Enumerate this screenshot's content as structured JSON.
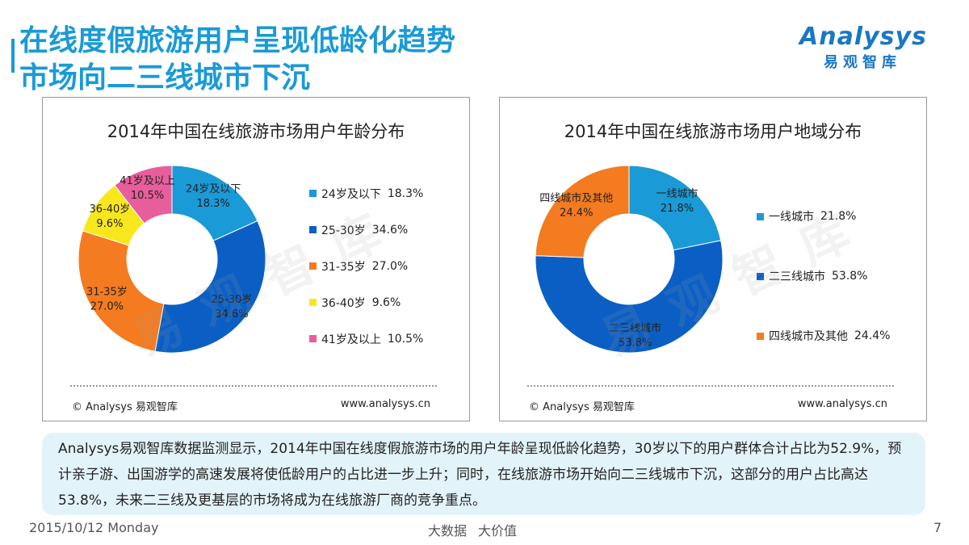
{
  "page": {
    "title_line1": "在线度假旅游用户呈现低龄化趋势",
    "title_line2": "市场向二三线城市下沉",
    "logo_en": "Analysys",
    "logo_cn": "易观智库",
    "watermark": "易观智库",
    "summary": "Analysys易观智库数据监测显示，2014年中国在线度假旅游市场的用户年龄呈现低龄化趋势，30岁以下的用户群体合计占比为52.9%，预计亲子游、出国游学的高速发展将使低龄用户的占比进一步上升；同时，在线旅游市场开始向二三线城市下沉，这部分的用户占比高达53.8%，未来二三线及更基层的市场将成为在线旅游厂商的竞争重点。",
    "date": "2015/10/12 Monday",
    "footer_center_1": "大数据",
    "footer_center_2": "大价值",
    "page_number": "7"
  },
  "chart_data": [
    {
      "type": "pie",
      "title": "2014年中国在线旅游市场用户年龄分布",
      "copyright": "© Analysys 易观智库",
      "url": "www.analysys.cn",
      "slices": [
        {
          "name": "24岁及以下",
          "value": 18.3,
          "label": "18.3%",
          "color": "#1a9ad6"
        },
        {
          "name": "25-30岁",
          "value": 34.6,
          "label": "34.6%",
          "color": "#0b5fc4"
        },
        {
          "name": "31-35岁",
          "value": 27.0,
          "label": "27.0%",
          "color": "#f47b20"
        },
        {
          "name": "36-40岁",
          "value": 9.6,
          "label": "9.6%",
          "color": "#f8e71c"
        },
        {
          "name": "41岁及以上",
          "value": 10.5,
          "label": "10.5%",
          "color": "#e85d9c"
        }
      ]
    },
    {
      "type": "pie",
      "title": "2014年中国在线旅游市场用户地域分布",
      "copyright": "© Analysys 易观智库",
      "url": "www.analysys.cn",
      "slices": [
        {
          "name": "一线城市",
          "value": 21.8,
          "label": "21.8%",
          "color": "#1a9ad6"
        },
        {
          "name": "二三线城市",
          "value": 53.8,
          "label": "53.8%",
          "color": "#0b5fc4"
        },
        {
          "name": "四线城市及其他",
          "value": 24.4,
          "label": "24.4%",
          "color": "#f47b20"
        }
      ]
    }
  ]
}
